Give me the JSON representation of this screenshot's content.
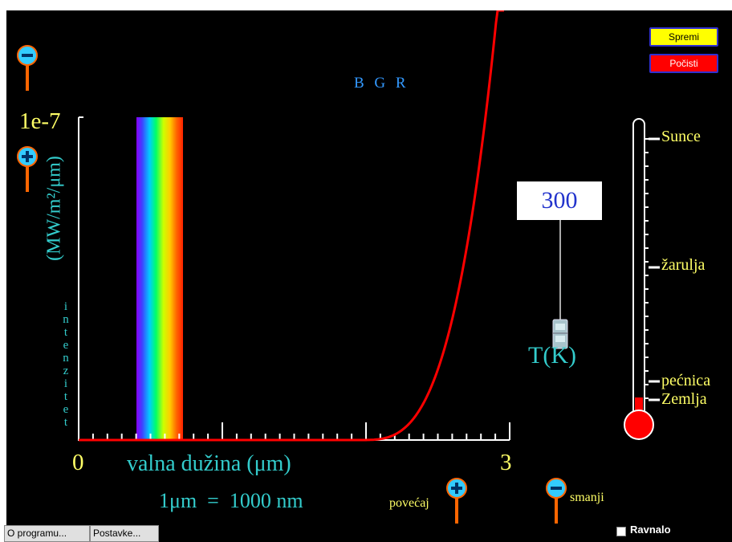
{
  "buttons": {
    "save_label": "Spremi",
    "clear_label": "Počisti",
    "about_label": "O programu...",
    "settings_label": "Postavke..."
  },
  "graph": {
    "y_max_label": "1e-7",
    "y_unit_label": "(MW/m²/μm)",
    "y_axis_word": [
      "i",
      "n",
      "t",
      "e",
      "n",
      "z",
      "i",
      "t",
      "e",
      "t"
    ],
    "x_min_label": "0",
    "x_max_label": "3",
    "x_axis_label": "valna dužina (μm)",
    "conversion_note": "1μm  =  1000 nm",
    "bgr_label": "B G R",
    "zoom_in_label": "povećaj",
    "zoom_out_label": "smanji"
  },
  "temperature": {
    "value": "300",
    "unit_label": "T(K)"
  },
  "thermometer": {
    "marks": [
      "Sunce",
      "žarulja",
      "pećnica",
      "Zemlja"
    ]
  },
  "ruler": {
    "label": "Ravnalo",
    "checked": false
  },
  "colors": {
    "curve": "#ff0000",
    "axis": "#ffffff",
    "cyan_text": "#33cccc",
    "yellow_text": "#ffff66",
    "magnifier_fill": "#33ccff",
    "magnifier_handle": "#ff6600"
  },
  "icons": [
    "zoom-in-icon",
    "zoom-out-icon",
    "temperature-slider-handle-icon",
    "thermometer-icon"
  ]
}
